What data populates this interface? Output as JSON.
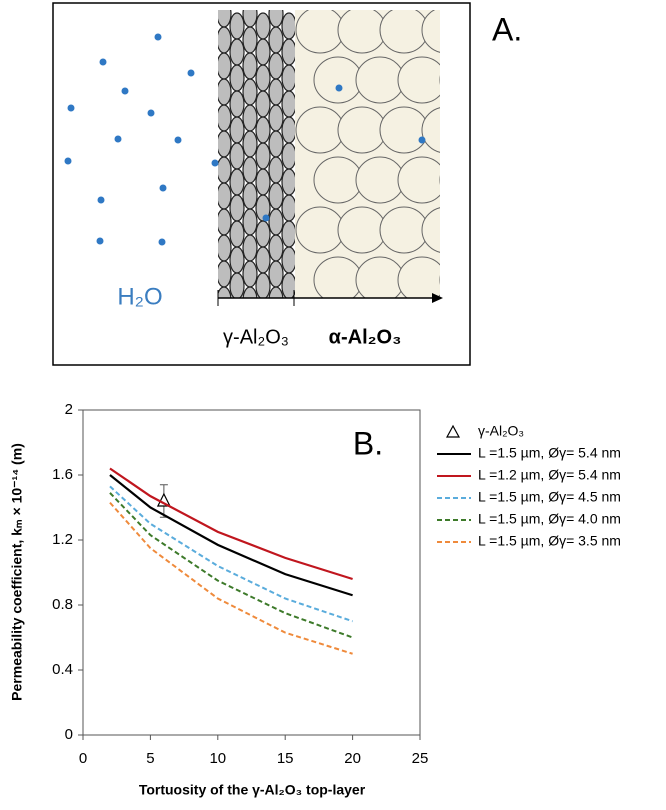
{
  "panel_a": {
    "label": "A.",
    "water": "H₂O",
    "gamma_layer": "γ-Al₂O₃",
    "alpha_layer": "α-Al₂O₃"
  },
  "chart_data": {
    "type": "line",
    "panel_label": "B.",
    "x_label": "Tortuosity of the γ-Al₂O₃ top-layer",
    "y_label": "Permeability coefficient, kₘ × 10⁻¹⁴ (m)",
    "x": [
      2,
      5,
      10,
      15,
      20
    ],
    "series": [
      {
        "name": "γ-Al₂O₃",
        "type": "scatter",
        "marker": "triangle",
        "color": "#000000",
        "x": [
          6
        ],
        "values": [
          1.44
        ],
        "errors": [
          0.1
        ]
      },
      {
        "name": "L =1.5 µm, Øγ= 5.4 nm",
        "color": "#000000",
        "dash": false,
        "values": [
          1.6,
          1.4,
          1.17,
          0.99,
          0.86
        ]
      },
      {
        "name": "L =1.2 µm, Øγ= 5.4 nm",
        "color": "#c0161e",
        "dash": false,
        "values": [
          1.64,
          1.47,
          1.25,
          1.09,
          0.96
        ]
      },
      {
        "name": "L =1.5 µm, Øγ= 4.5 nm",
        "color": "#5aacdc",
        "dash": true,
        "values": [
          1.53,
          1.3,
          1.04,
          0.84,
          0.7
        ]
      },
      {
        "name": "L =1.5 µm, Øγ= 4.0 nm",
        "color": "#3d7a2a",
        "dash": true,
        "values": [
          1.49,
          1.23,
          0.95,
          0.75,
          0.6
        ]
      },
      {
        "name": "L =1.5 µm, Øγ= 3.5 nm",
        "color": "#ef8a3b",
        "dash": true,
        "values": [
          1.43,
          1.15,
          0.84,
          0.63,
          0.5
        ]
      }
    ],
    "xlim": [
      0,
      25
    ],
    "xticks": [
      0,
      5,
      10,
      15,
      20,
      25
    ],
    "ylim": [
      0,
      2
    ],
    "yticks": [
      0,
      0.4,
      0.8,
      1.2,
      1.6,
      2
    ],
    "grid": false
  }
}
